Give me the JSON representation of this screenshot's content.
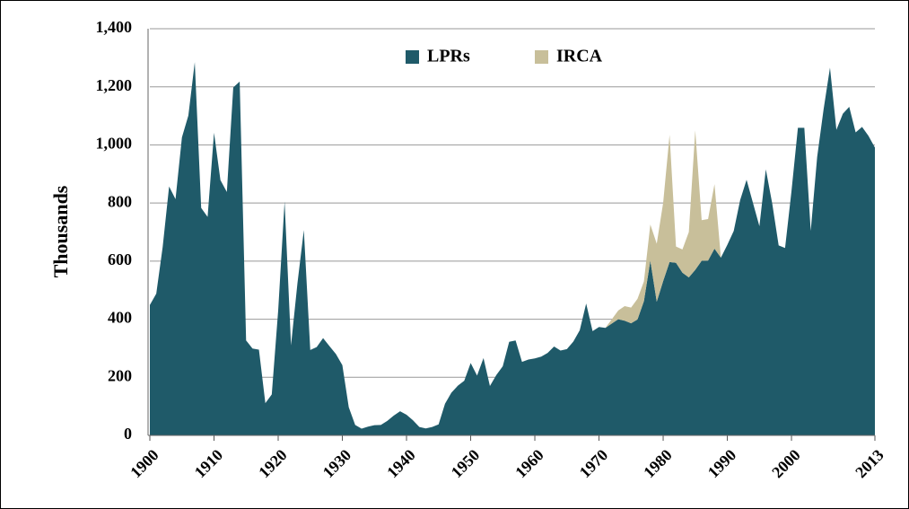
{
  "chart_data": {
    "type": "stacked_area",
    "ylabel": "Thousands",
    "x": [
      1900,
      1901,
      1902,
      1903,
      1904,
      1905,
      1906,
      1907,
      1908,
      1909,
      1910,
      1911,
      1912,
      1913,
      1914,
      1915,
      1916,
      1917,
      1918,
      1919,
      1920,
      1921,
      1922,
      1923,
      1924,
      1925,
      1926,
      1927,
      1928,
      1929,
      1930,
      1931,
      1932,
      1933,
      1934,
      1935,
      1936,
      1937,
      1938,
      1939,
      1940,
      1941,
      1942,
      1943,
      1944,
      1945,
      1946,
      1947,
      1948,
      1949,
      1950,
      1951,
      1952,
      1953,
      1954,
      1955,
      1956,
      1957,
      1958,
      1959,
      1960,
      1961,
      1962,
      1963,
      1964,
      1965,
      1966,
      1967,
      1968,
      1969,
      1970,
      1971,
      1972,
      1973,
      1974,
      1975,
      1976,
      1977,
      1978,
      1979,
      1980,
      1981,
      1982,
      1983,
      1984,
      1985,
      1986,
      1987,
      1988,
      1989,
      1990,
      1991,
      1992,
      1993,
      1994,
      1995,
      1996,
      1997,
      1998,
      1999,
      2000,
      2001,
      2002,
      2003,
      2004,
      2005,
      2006,
      2007,
      2008,
      2009,
      2010,
      2011,
      2012,
      2013
    ],
    "series": [
      {
        "name": "LPRs",
        "color": "#1f5a69",
        "values": [
          449,
          488,
          649,
          857,
          813,
          1026,
          1101,
          1285,
          783,
          752,
          1042,
          879,
          838,
          1198,
          1218,
          327,
          299,
          295,
          111,
          141,
          430,
          805,
          310,
          523,
          707,
          294,
          304,
          335,
          307,
          280,
          242,
          97,
          36,
          23,
          30,
          35,
          36,
          50,
          68,
          83,
          71,
          52,
          29,
          24,
          29,
          38,
          109,
          147,
          171,
          188,
          249,
          206,
          266,
          170,
          208,
          238,
          322,
          327,
          253,
          261,
          265,
          271,
          284,
          306,
          292,
          297,
          323,
          362,
          454,
          359,
          373,
          370,
          385,
          400,
          395,
          386,
          399,
          462,
          601,
          460,
          531,
          597,
          594,
          560,
          544,
          570,
          601,
          602,
          643,
          612,
          656,
          704,
          810,
          880,
          800,
          720,
          916,
          798,
          654,
          645,
          841,
          1059,
          1059,
          704,
          958,
          1122,
          1266,
          1052,
          1107,
          1131,
          1043,
          1062,
          1031,
          991
        ]
      },
      {
        "name": "IRCA",
        "color": "#c8bf9a",
        "values": [
          null,
          null,
          null,
          null,
          null,
          null,
          null,
          null,
          null,
          null,
          null,
          null,
          null,
          null,
          null,
          null,
          null,
          null,
          null,
          null,
          null,
          null,
          null,
          null,
          null,
          null,
          null,
          null,
          null,
          null,
          null,
          null,
          null,
          null,
          null,
          null,
          null,
          null,
          null,
          null,
          null,
          null,
          null,
          null,
          null,
          null,
          null,
          null,
          null,
          null,
          null,
          null,
          null,
          null,
          null,
          null,
          null,
          null,
          null,
          null,
          null,
          null,
          null,
          null,
          null,
          null,
          null,
          null,
          null,
          null,
          null,
          0,
          15,
          30,
          50,
          54,
          71,
          68,
          125,
          200,
          270,
          438,
          56,
          80,
          156,
          480,
          140,
          143,
          222,
          0,
          null,
          null,
          null,
          null,
          null,
          null,
          null,
          null,
          null,
          null,
          null,
          null,
          null,
          null,
          null,
          null,
          null,
          null,
          null,
          null,
          null,
          null,
          null,
          null
        ]
      }
    ],
    "xlim": [
      1900,
      2013
    ],
    "xticks": [
      1900,
      1910,
      1920,
      1930,
      1940,
      1950,
      1960,
      1970,
      1980,
      1990,
      2000,
      2013
    ],
    "ylim": [
      0,
      1400
    ],
    "yticks": [
      0,
      200,
      400,
      {
        "value": 600,
        "label": "600"
      },
      {
        "value": 800,
        "label": "800"
      },
      {
        "value": 1000,
        "label": "1,000"
      },
      {
        "value": 1200,
        "label": "1,200"
      },
      {
        "value": 1400,
        "label": "1,400"
      }
    ],
    "grid": true,
    "legend": "top"
  }
}
